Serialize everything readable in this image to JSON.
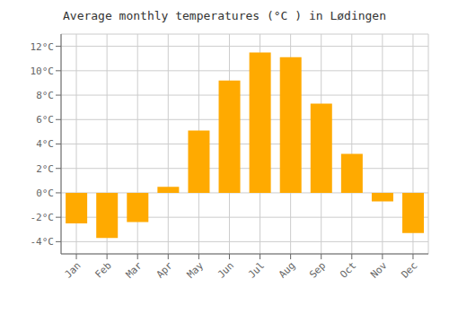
{
  "chart_data": {
    "type": "bar",
    "title": "Average monthly temperatures (°C ) in Lødingen",
    "categories": [
      "Jan",
      "Feb",
      "Mar",
      "Apr",
      "May",
      "Jun",
      "Jul",
      "Aug",
      "Sep",
      "Oct",
      "Nov",
      "Dec"
    ],
    "values": [
      -2.5,
      -3.7,
      -2.4,
      0.5,
      5.1,
      9.2,
      11.5,
      11.1,
      7.3,
      3.2,
      -0.7,
      -3.3
    ],
    "color": "#FFAA00",
    "ylim": [
      -5,
      13
    ],
    "yticks": [
      {
        "value": -4,
        "label": "-4°C"
      },
      {
        "value": -2,
        "label": "-2°C"
      },
      {
        "value": 0,
        "label": "0°C"
      },
      {
        "value": 2,
        "label": "2°C"
      },
      {
        "value": 4,
        "label": "4°C"
      },
      {
        "value": 6,
        "label": "6°C"
      },
      {
        "value": 8,
        "label": "8°C"
      },
      {
        "value": 10,
        "label": "10°C"
      },
      {
        "value": 12,
        "label": "12°C"
      }
    ],
    "grid": true
  }
}
